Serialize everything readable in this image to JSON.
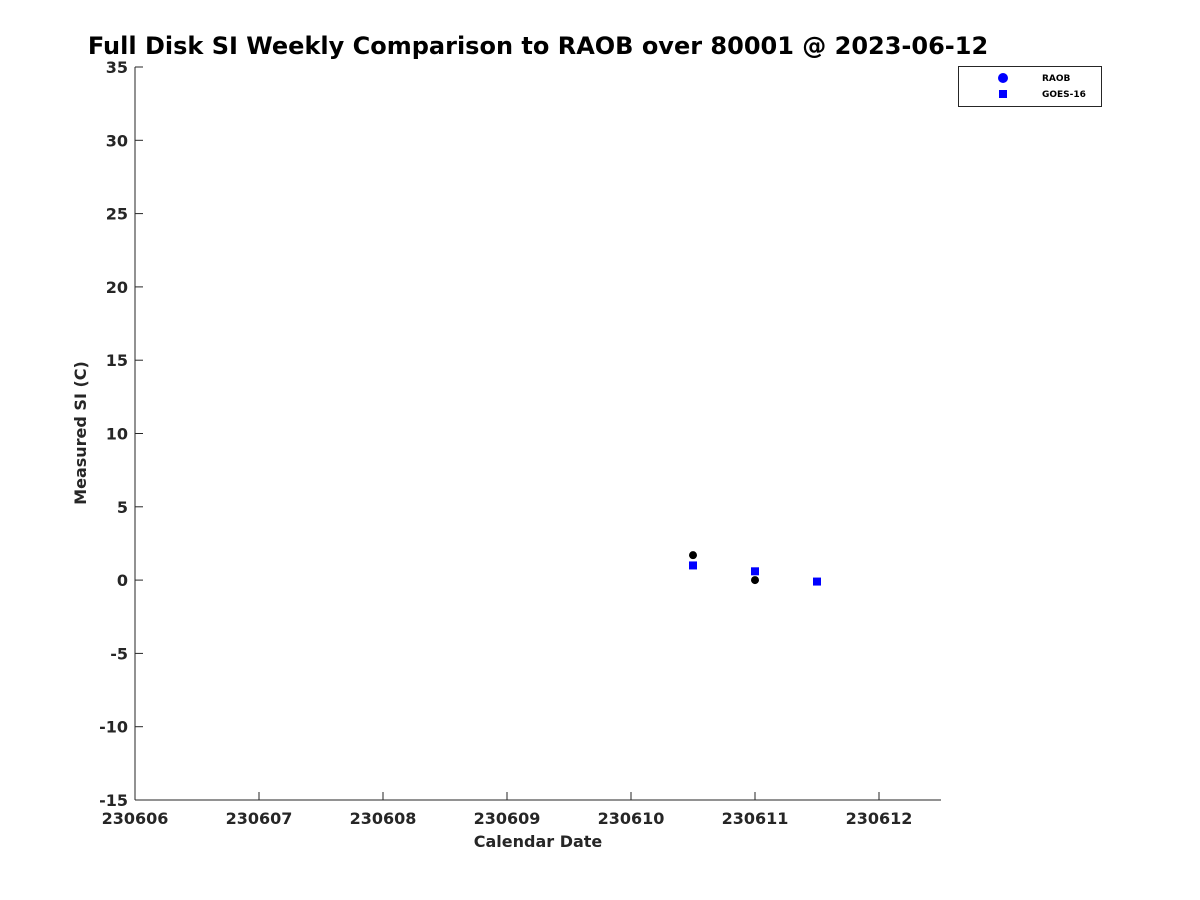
{
  "chart_data": {
    "type": "scatter",
    "title": "Full Disk SI Weekly Comparison to RAOB over 80001 @ 2023-06-12",
    "xlabel": "Calendar Date",
    "ylabel": "Measured SI (C)",
    "xlim": [
      230606,
      230612.5
    ],
    "ylim": [
      -15,
      35
    ],
    "xticks": [
      230606,
      230607,
      230608,
      230609,
      230610,
      230611,
      230612
    ],
    "xtick_labels": [
      "230606",
      "230607",
      "230608",
      "230609",
      "230610",
      "230611",
      "230612"
    ],
    "yticks": [
      -15,
      -10,
      -5,
      0,
      5,
      10,
      15,
      20,
      25,
      30,
      35
    ],
    "ytick_labels": [
      "-15",
      "-10",
      "-5",
      "0",
      "5",
      "10",
      "15",
      "20",
      "25",
      "30",
      "35"
    ],
    "grid": false,
    "legend_position": "top-right-outside",
    "series": [
      {
        "name": "RAOB",
        "marker": "circle",
        "legend_color": "#0000ff",
        "point_color": "#000000",
        "x": [
          230610.5,
          230611.0
        ],
        "y": [
          1.7,
          0.0
        ]
      },
      {
        "name": "GOES-16",
        "marker": "square",
        "legend_color": "#0000ff",
        "point_color": "#0000ff",
        "x": [
          230610.5,
          230611.0,
          230611.5
        ],
        "y": [
          1.0,
          0.6,
          -0.1
        ]
      }
    ]
  }
}
